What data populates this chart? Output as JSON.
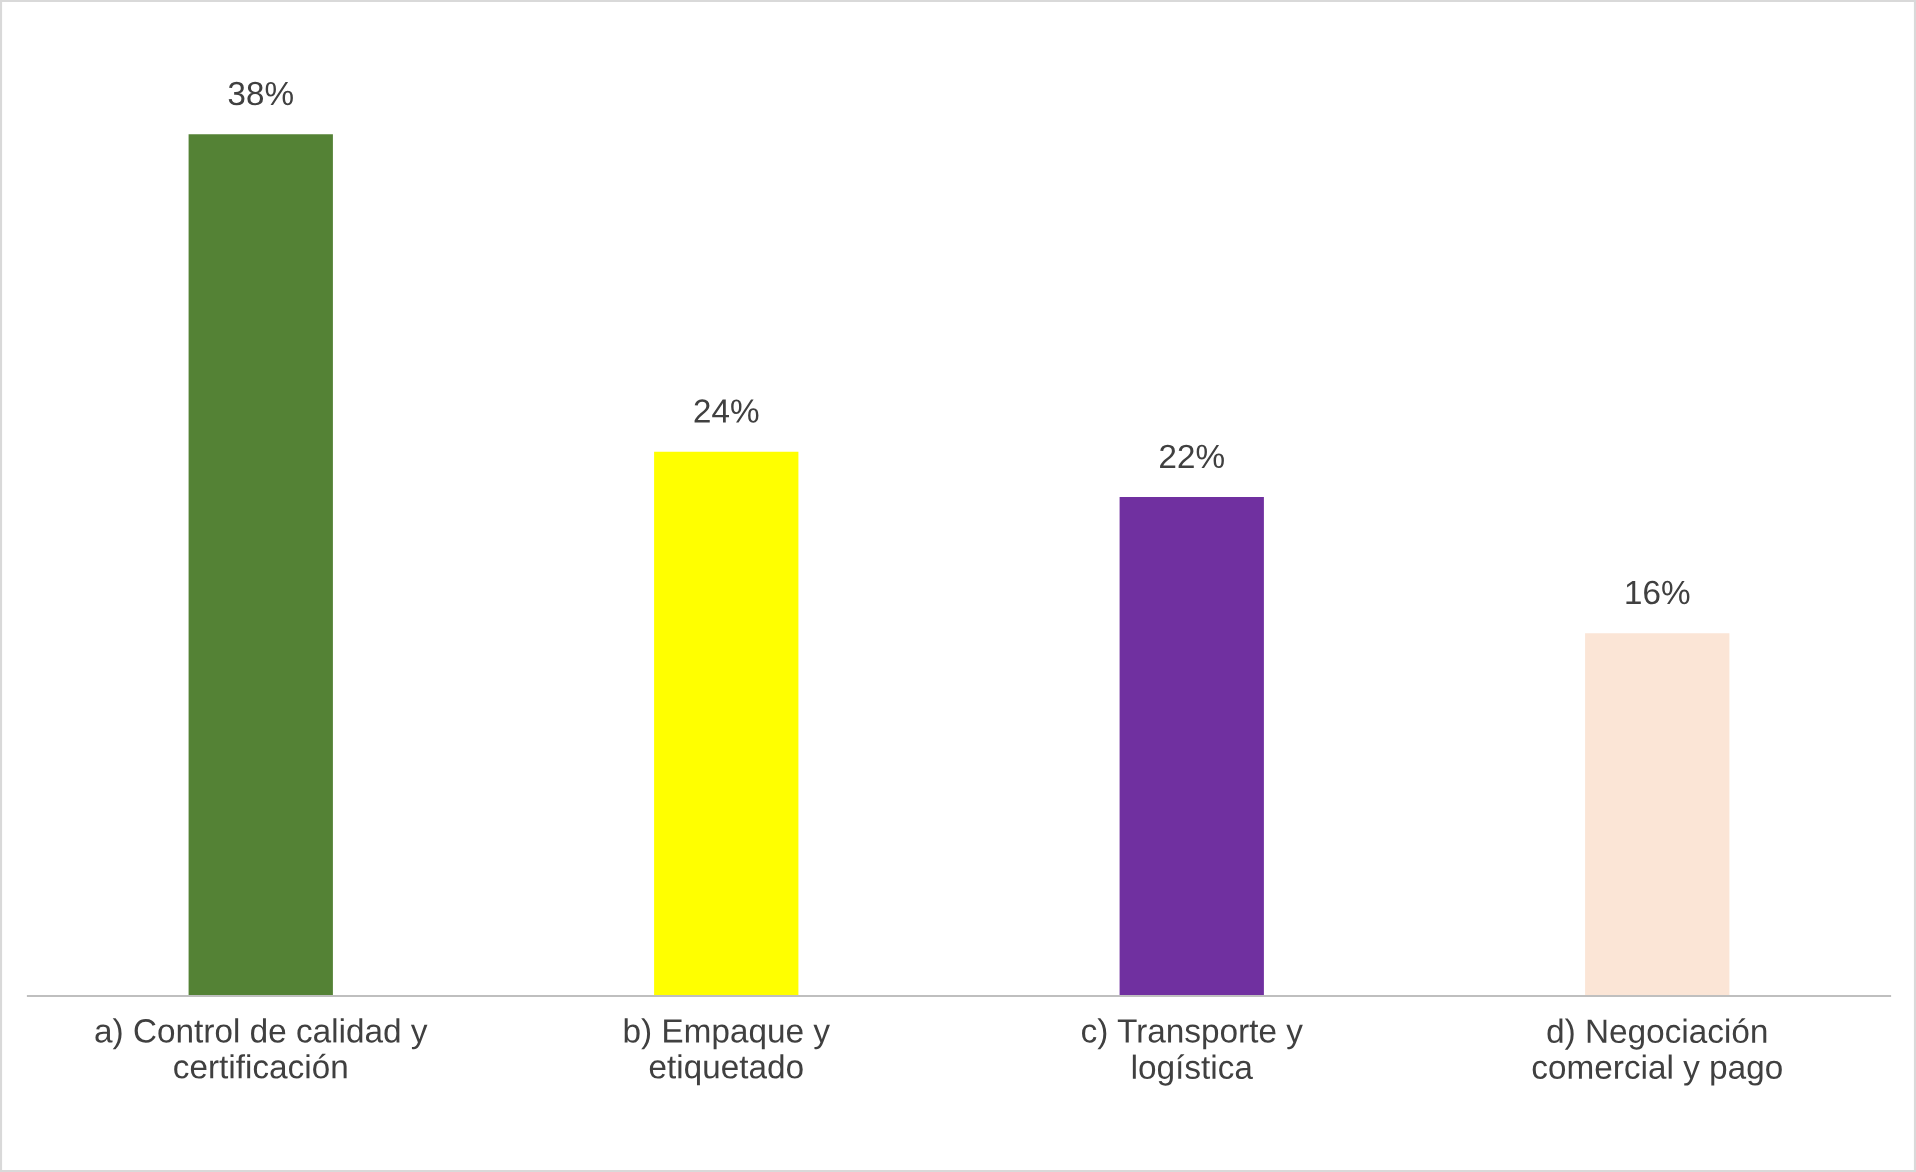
{
  "chart_data": {
    "type": "bar",
    "categories": [
      "a) Control de calidad y\ncertificación",
      "b) Empaque y\netiquetado",
      "c) Transporte y\nlogística",
      "d) Negociación\ncomercial y pago"
    ],
    "values": [
      38,
      24,
      22,
      16
    ],
    "colors": [
      "#548235",
      "#ffff00",
      "#7030a0",
      "#fbe5d6"
    ],
    "value_labels": [
      "38%",
      "24%",
      "22%",
      "16%"
    ],
    "tick_labels": "x",
    "grid": false,
    "legend": false
  }
}
